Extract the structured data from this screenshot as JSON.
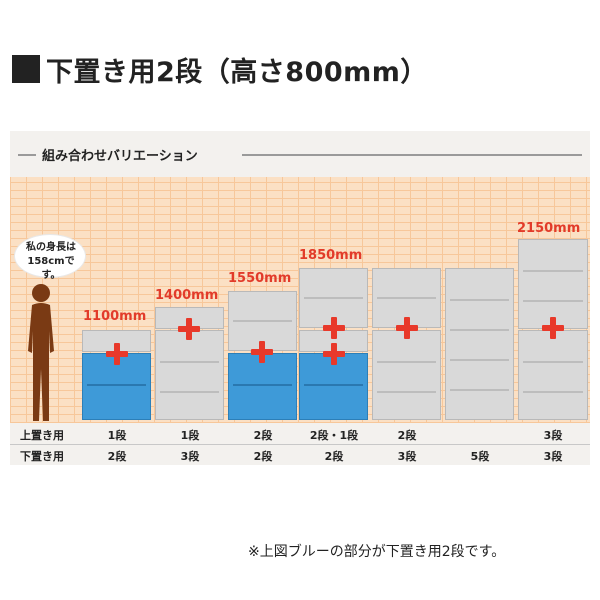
{
  "title": "下置き用2段（高さ800mm）",
  "panel": {
    "caption": "組み合わせバリエーション",
    "person_bubble": [
      "私の身長は",
      "158cmです。"
    ],
    "heights": [
      "1100mm",
      "1400mm",
      "1550mm",
      "1850mm",
      "2150mm"
    ],
    "table": {
      "row1_label": "上置き用",
      "row2_label": "下置き用",
      "row1": [
        "1段",
        "1段",
        "2段",
        "2段・1段",
        "2段",
        "",
        "3段"
      ],
      "row2": [
        "2段",
        "3段",
        "2段",
        "2段",
        "3段",
        "5段",
        "3段"
      ]
    }
  },
  "colors": {
    "accent_red": "#e8392a",
    "highlight_blue": "#3e9ad8",
    "label_red": "#e23b2a"
  },
  "footnote": "※上図ブルーの部分が下置き用2段です。"
}
